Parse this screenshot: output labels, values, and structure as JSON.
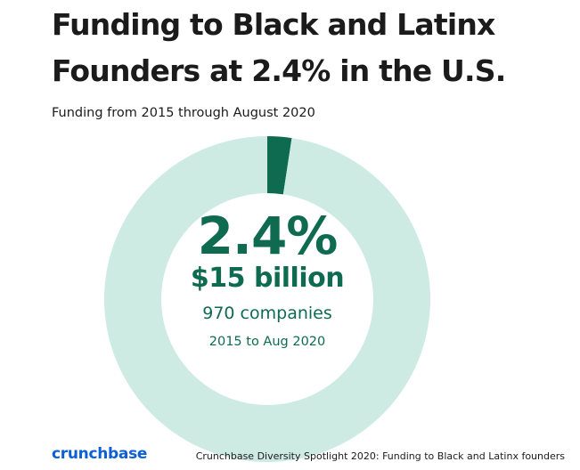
{
  "header": {
    "title_line1": "Funding to Black and Latinx",
    "title_line2": "Founders at 2.4% in the U.S.",
    "subtitle": "Funding from 2015 through August 2020"
  },
  "center": {
    "percent_label": "2.4%",
    "amount_label": "$15 billion",
    "companies_label": "970 companies",
    "period_label": "2015 to Aug 2020"
  },
  "footer": {
    "logo": "crunchbase",
    "source": "Crunchbase Diversity Spotlight 2020: Funding to Black and Latinx founders"
  },
  "colors": {
    "highlight": "#0e6b4f",
    "remainder": "#cdeae3",
    "text_dark": "#1b1b1b",
    "brand_blue": "#0d5fd6"
  },
  "chart_data": {
    "type": "pie",
    "style": "donut",
    "title": "Funding to Black and Latinx Founders at 2.4% in the U.S.",
    "subtitle": "Funding from 2015 through August 2020",
    "slices": [
      {
        "label": "Black and Latinx founders",
        "value": 2.4,
        "color": "#0e6b4f"
      },
      {
        "label": "",
        "value": 97.6,
        "color": "#cdeae3"
      }
    ],
    "center_labels": [
      "2.4%",
      "$15 billion",
      "970 companies",
      "2015 to Aug 2020"
    ],
    "legend": "none"
  }
}
